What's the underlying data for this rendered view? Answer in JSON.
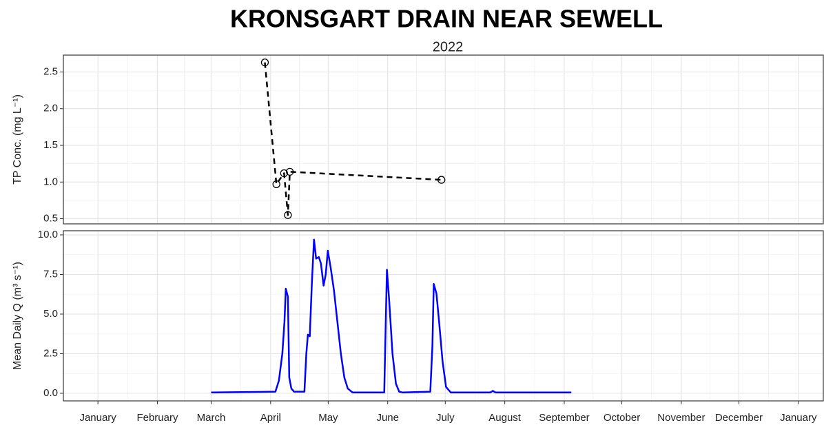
{
  "chart_data": [
    {
      "type": "line",
      "title": "KRONSGART DRAIN NEAR SEWELL",
      "subtitle": "2022",
      "y_label": "TP Conc. (mg L⁻¹)",
      "markers": true,
      "dashed": true,
      "color": "#000000",
      "grid": true,
      "x": [
        87,
        93,
        97,
        99,
        100,
        179
      ],
      "values": [
        2.63,
        0.97,
        1.12,
        0.55,
        1.14,
        1.03
      ],
      "xlim": [
        -18,
        378
      ],
      "xticks": [
        0,
        31,
        59,
        90,
        120,
        151,
        181,
        212,
        243,
        273,
        304,
        334,
        365
      ],
      "ylim": [
        0.43,
        2.73
      ],
      "yticks": [
        {
          "value": 0.5,
          "label": "0.5"
        },
        {
          "value": 1,
          "label": "1.0"
        },
        {
          "value": 1.5,
          "label": "1.5"
        },
        {
          "value": 2,
          "label": "2.0"
        },
        {
          "value": 2.5,
          "label": "2.5"
        }
      ]
    },
    {
      "type": "line",
      "y_label": "Mean Daily Q (m³ s⁻¹)",
      "markers": false,
      "dashed": false,
      "color": "#0000ff",
      "grid": true,
      "x": [
        59,
        92.5,
        94.3,
        96.1,
        97.2,
        97.9,
        99,
        99.7,
        100.8,
        102.2,
        107.6,
        108.6,
        109.4,
        110.4,
        111.5,
        112.6,
        113.7,
        115.1,
        116.2,
        117.6,
        118.7,
        119.8,
        121.2,
        123,
        124.8,
        126.6,
        128.4,
        130.2,
        132.7,
        149.2,
        149.9,
        150.6,
        151.7,
        153.5,
        155.3,
        157,
        158.8,
        173.2,
        174.3,
        175,
        176.4,
        177.8,
        179.6,
        181.4,
        183.9,
        204.4,
        205.8,
        207.2,
        246.7
      ],
      "values": [
        0.05,
        0.1,
        0.8,
        2.5,
        4.5,
        6.6,
        6.1,
        1.0,
        0.3,
        0.1,
        0.1,
        2.5,
        3.7,
        3.6,
        7.0,
        9.7,
        8.5,
        8.6,
        8.2,
        6.8,
        7.5,
        9.0,
        8.0,
        6.5,
        4.5,
        2.5,
        1.0,
        0.3,
        0.05,
        0.05,
        4.0,
        7.8,
        6.0,
        2.5,
        0.6,
        0.1,
        0.05,
        0.1,
        3.0,
        6.9,
        6.3,
        4.5,
        2.0,
        0.4,
        0.05,
        0.05,
        0.15,
        0.05,
        0.05
      ],
      "xlim": [
        -18,
        378
      ],
      "xticks": [
        {
          "value": 0,
          "label": "January"
        },
        {
          "value": 31,
          "label": "February"
        },
        {
          "value": 59,
          "label": "March"
        },
        {
          "value": 90,
          "label": "April"
        },
        {
          "value": 120,
          "label": "May"
        },
        {
          "value": 151,
          "label": "June"
        },
        {
          "value": 181,
          "label": "July"
        },
        {
          "value": 212,
          "label": "August"
        },
        {
          "value": 243,
          "label": "September"
        },
        {
          "value": 273,
          "label": "October"
        },
        {
          "value": 304,
          "label": "November"
        },
        {
          "value": 334,
          "label": "December"
        },
        {
          "value": 365,
          "label": "January"
        }
      ],
      "ylim": [
        -0.48,
        10.26
      ],
      "yticks": [
        {
          "value": 0,
          "label": "0.0"
        },
        {
          "value": 2.5,
          "label": "2.5"
        },
        {
          "value": 5,
          "label": "5.0"
        },
        {
          "value": 7.5,
          "label": "7.5"
        },
        {
          "value": 10,
          "label": "10.0"
        }
      ]
    }
  ]
}
